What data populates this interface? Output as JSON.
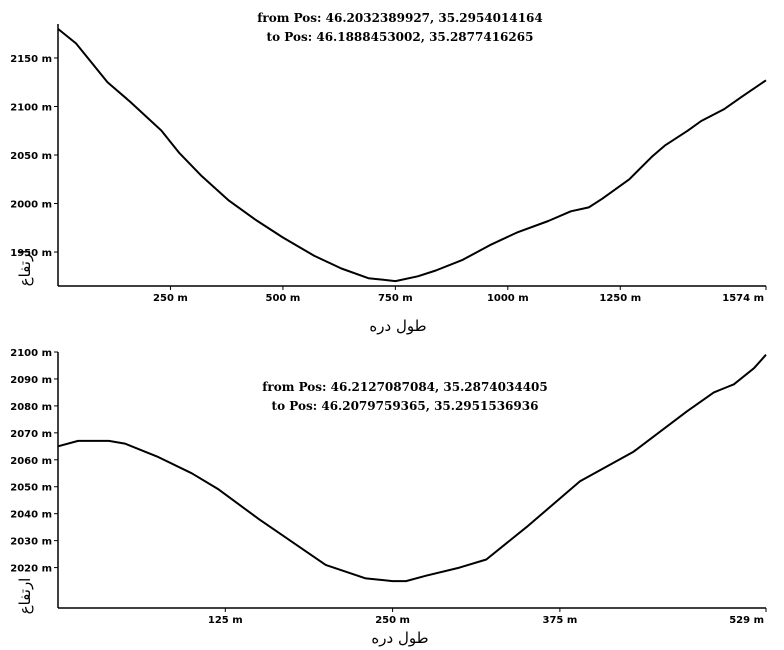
{
  "chart_data": [
    {
      "type": "line",
      "header_from": "from Pos: 46.2032389927, 35.2954014164",
      "header_to": "to Pos: 46.1888453002, 35.2877416265",
      "xlabel": "طول دره",
      "ylabel": "ارتفاع",
      "xlim": [
        0,
        1574
      ],
      "ylim": [
        1915,
        2185
      ],
      "x_ticks": [
        {
          "value": 250,
          "label": "250 m"
        },
        {
          "value": 500,
          "label": "500 m"
        },
        {
          "value": 750,
          "label": "750 m"
        },
        {
          "value": 1000,
          "label": "1000 m"
        },
        {
          "value": 1250,
          "label": "1250 m"
        },
        {
          "value": 1574,
          "label": "1574 m"
        }
      ],
      "y_ticks": [
        {
          "value": 1950,
          "label": "1950 m"
        },
        {
          "value": 2000,
          "label": "2000 m"
        },
        {
          "value": 2050,
          "label": "2050 m"
        },
        {
          "value": 2100,
          "label": "2100 m"
        },
        {
          "value": 2150,
          "label": "2150 m"
        }
      ],
      "x": [
        0,
        40,
        110,
        160,
        230,
        270,
        320,
        380,
        440,
        500,
        570,
        630,
        690,
        750,
        800,
        840,
        900,
        960,
        1020,
        1090,
        1140,
        1180,
        1210,
        1270,
        1320,
        1350,
        1400,
        1430,
        1480,
        1520,
        1574
      ],
      "y": [
        2180,
        2165,
        2125,
        2105,
        2075,
        2052,
        2028,
        2003,
        1983,
        1965,
        1946,
        1933,
        1923,
        1920,
        1925,
        1931,
        1942,
        1957,
        1970,
        1982,
        1992,
        1996,
        2005,
        2025,
        2048,
        2060,
        2075,
        2085,
        2097,
        2110,
        2127
      ]
    },
    {
      "type": "line",
      "header_from": "from Pos: 46.2127087084, 35.2874034405",
      "header_to": "to Pos: 46.2079759365, 35.2951536936",
      "xlabel": "طول دره",
      "ylabel": "ارتفاع",
      "xlim": [
        0,
        529
      ],
      "ylim": [
        2005,
        2100
      ],
      "x_ticks": [
        {
          "value": 125,
          "label": "125 m"
        },
        {
          "value": 250,
          "label": "250 m"
        },
        {
          "value": 375,
          "label": "375 m"
        },
        {
          "value": 529,
          "label": "529 m"
        }
      ],
      "y_ticks": [
        {
          "value": 2020,
          "label": "2020 m"
        },
        {
          "value": 2030,
          "label": "2030 m"
        },
        {
          "value": 2040,
          "label": "2040 m"
        },
        {
          "value": 2050,
          "label": "2050 m"
        },
        {
          "value": 2060,
          "label": "2060 m"
        },
        {
          "value": 2070,
          "label": "2070 m"
        },
        {
          "value": 2080,
          "label": "2080 m"
        },
        {
          "value": 2090,
          "label": "2090 m"
        },
        {
          "value": 2100,
          "label": "2100 m"
        }
      ],
      "x": [
        0,
        15,
        38,
        50,
        75,
        100,
        120,
        150,
        200,
        230,
        250,
        260,
        275,
        300,
        320,
        350,
        390,
        430,
        470,
        490,
        500,
        505,
        520,
        529
      ],
      "y": [
        2065,
        2067,
        2067,
        2066,
        2061,
        2055,
        2049,
        2038,
        2021,
        2016,
        2015,
        2015,
        2017,
        2020,
        2023,
        2035,
        2052,
        2063,
        2078,
        2085,
        2087,
        2088,
        2094,
        2099
      ]
    }
  ]
}
